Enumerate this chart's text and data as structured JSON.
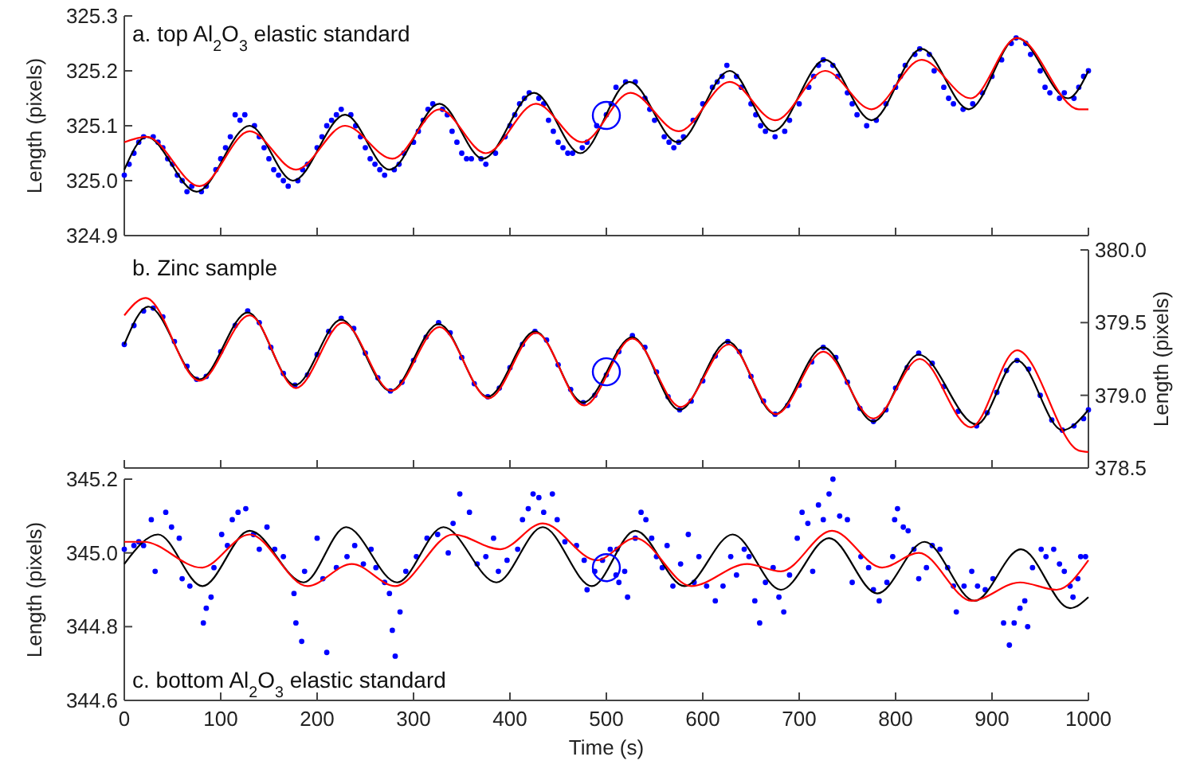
{
  "chart_data": [
    {
      "type": "scatter",
      "title": "a. top Al$_{2}$O$_{3}$ elastic standard",
      "ylabel": "Length (pixels)",
      "xlim": [
        0,
        1000
      ],
      "xticks": [
        0,
        100,
        200,
        300,
        400,
        500,
        600,
        700,
        800,
        900,
        1000
      ],
      "ylim": [
        324.9,
        325.3
      ],
      "yticks": [
        324.9,
        {
          "value": 325,
          "label": "325.0"
        },
        325.1,
        325.2,
        325.3
      ],
      "tick_labels": "y",
      "grid": false,
      "series": [
        {
          "color": "#0000ff",
          "marker": "circle",
          "x": [
            0,
            5,
            10,
            15,
            20,
            30,
            35,
            40,
            45,
            50,
            55,
            60,
            65,
            70,
            80,
            85,
            95,
            100,
            105,
            110,
            115,
            120,
            125,
            135,
            140,
            145,
            150,
            155,
            160,
            165,
            170,
            180,
            185,
            190,
            200,
            205,
            210,
            215,
            220,
            225,
            235,
            240,
            245,
            250,
            255,
            260,
            265,
            270,
            280,
            285,
            290,
            300,
            305,
            310,
            315,
            320,
            330,
            335,
            340,
            345,
            350,
            355,
            360,
            370,
            375,
            385,
            395,
            400,
            405,
            410,
            415,
            420,
            430,
            435,
            440,
            445,
            450,
            455,
            460,
            465,
            475,
            480,
            490,
            500,
            505,
            510,
            520,
            530,
            540,
            545,
            550,
            560,
            565,
            570,
            575,
            580,
            590,
            600,
            610,
            615,
            620,
            625,
            635,
            640,
            650,
            655,
            660,
            665,
            675,
            685,
            690,
            700,
            710,
            715,
            720,
            725,
            735,
            740,
            750,
            755,
            760,
            770,
            780,
            790,
            800,
            805,
            810,
            820,
            825,
            835,
            840,
            850,
            855,
            860,
            870,
            880,
            890,
            900,
            910,
            920,
            925,
            935,
            940,
            950,
            955,
            960,
            970,
            975,
            985,
            990,
            995,
            1000
          ],
          "values": [
            325.01,
            325.03,
            325.05,
            325.07,
            325.08,
            325.08,
            325.07,
            325.06,
            325.04,
            325.03,
            325.01,
            325.0,
            324.98,
            324.99,
            324.98,
            324.99,
            325.02,
            325.04,
            325.06,
            325.08,
            325.12,
            325.11,
            325.12,
            325.1,
            325.08,
            325.06,
            325.04,
            325.02,
            325.01,
            325.0,
            324.99,
            325.0,
            325.02,
            325.03,
            325.06,
            325.08,
            325.1,
            325.11,
            325.12,
            325.13,
            325.12,
            325.1,
            325.08,
            325.06,
            325.04,
            325.03,
            325.02,
            325.01,
            325.02,
            325.03,
            325.05,
            325.07,
            325.09,
            325.11,
            325.13,
            325.14,
            325.13,
            325.12,
            325.09,
            325.07,
            325.05,
            325.04,
            325.04,
            325.04,
            325.03,
            325.05,
            325.08,
            325.1,
            325.12,
            325.14,
            325.15,
            325.16,
            325.15,
            325.14,
            325.11,
            325.09,
            325.07,
            325.06,
            325.05,
            325.05,
            325.06,
            325.07,
            325.1,
            325.12,
            325.14,
            325.17,
            325.18,
            325.18,
            325.15,
            325.13,
            325.11,
            325.08,
            325.07,
            325.06,
            325.07,
            325.08,
            325.11,
            325.14,
            325.17,
            325.18,
            325.19,
            325.21,
            325.19,
            325.17,
            325.14,
            325.12,
            325.1,
            325.09,
            325.08,
            325.09,
            325.11,
            325.14,
            325.17,
            325.19,
            325.21,
            325.22,
            325.21,
            325.19,
            325.16,
            325.14,
            325.12,
            325.1,
            325.11,
            325.14,
            325.17,
            325.19,
            325.21,
            325.23,
            325.24,
            325.23,
            325.2,
            325.17,
            325.15,
            325.14,
            325.13,
            325.14,
            325.16,
            325.19,
            325.22,
            325.25,
            325.26,
            325.25,
            325.23,
            325.2,
            325.17,
            325.16,
            325.15,
            325.16,
            325.15,
            325.17,
            325.19,
            325.2
          ]
        },
        {
          "type": "line",
          "color": "#000000",
          "x": [
            0,
            23,
            75,
            130,
            175,
            229,
            275,
            327,
            372,
            425,
            473,
            524,
            574,
            628,
            673,
            727,
            775,
            827,
            876,
            926,
            979,
            1000
          ],
          "values": [
            325.02,
            325.08,
            324.98,
            325.1,
            325.0,
            325.12,
            325.02,
            325.14,
            325.04,
            325.16,
            325.05,
            325.18,
            325.07,
            325.2,
            325.09,
            325.22,
            325.11,
            325.24,
            325.13,
            325.26,
            325.15,
            325.2
          ]
        },
        {
          "type": "line",
          "color": "#ff0000",
          "x": [
            0,
            23,
            78,
            130,
            178,
            229,
            278,
            327,
            375,
            427,
            475,
            525,
            575,
            628,
            675,
            727,
            775,
            827,
            878,
            926,
            990,
            1000
          ],
          "values": [
            325.07,
            325.08,
            324.99,
            325.09,
            325.02,
            325.1,
            325.04,
            325.13,
            325.05,
            325.14,
            325.07,
            325.16,
            325.09,
            325.18,
            325.11,
            325.2,
            325.13,
            325.22,
            325.15,
            325.26,
            325.13,
            325.13
          ]
        }
      ]
    },
    {
      "type": "scatter",
      "title": "b. Zinc sample",
      "ylabel": "Length (pixels)",
      "xlim": [
        0,
        1000
      ],
      "xticks": [
        0,
        100,
        200,
        300,
        400,
        500,
        600,
        700,
        800,
        900,
        1000
      ],
      "ylim": [
        378.5,
        380
      ],
      "yticks": [
        378.5,
        {
          "value": 379,
          "label": "379.0"
        },
        379.5,
        {
          "value": 380,
          "label": "380.0"
        }
      ],
      "tick_labels": "y",
      "grid": false,
      "series": [
        {
          "color": "#0000ff",
          "marker": "circle",
          "x": [
            0,
            10,
            20,
            30,
            40,
            52,
            65,
            75,
            85,
            100,
            115,
            128,
            140,
            152,
            165,
            177,
            190,
            200,
            212,
            225,
            238,
            250,
            263,
            276,
            288,
            300,
            313,
            326,
            338,
            350,
            363,
            377,
            389,
            400,
            413,
            426,
            438,
            450,
            463,
            476,
            488,
            500,
            513,
            527,
            540,
            552,
            564,
            576,
            588,
            600,
            613,
            626,
            638,
            650,
            663,
            675,
            688,
            700,
            713,
            725,
            738,
            750,
            763,
            777,
            790,
            800,
            812,
            824,
            838,
            850,
            865,
            884,
            895,
            905,
            915,
            926,
            938,
            950,
            962,
            973,
            985,
            995,
            1000
          ],
          "values": [
            379.35,
            379.48,
            379.58,
            379.6,
            379.54,
            379.37,
            379.2,
            379.11,
            379.13,
            379.3,
            379.48,
            379.58,
            379.5,
            379.33,
            379.15,
            379.07,
            379.14,
            379.28,
            379.44,
            379.53,
            379.46,
            379.29,
            379.12,
            379.03,
            379.09,
            379.24,
            379.4,
            379.5,
            379.43,
            379.26,
            379.08,
            378.99,
            379.05,
            379.19,
            379.35,
            379.44,
            379.38,
            379.21,
            379.04,
            378.95,
            379.0,
            379.14,
            379.3,
            379.41,
            379.33,
            379.16,
            378.99,
            378.9,
            378.96,
            379.1,
            379.27,
            379.37,
            379.3,
            379.13,
            378.96,
            378.87,
            378.93,
            379.07,
            379.23,
            379.33,
            379.26,
            379.09,
            378.91,
            378.82,
            378.9,
            379.05,
            379.19,
            379.29,
            379.22,
            379.06,
            378.89,
            378.79,
            378.88,
            379.02,
            379.17,
            379.24,
            379.18,
            379.0,
            378.83,
            378.76,
            378.79,
            378.84,
            378.9
          ]
        },
        {
          "type": "line",
          "color": "#000000",
          "x": [
            0,
            25,
            78,
            128,
            177,
            225,
            276,
            326,
            377,
            426,
            476,
            527,
            576,
            626,
            675,
            725,
            777,
            824,
            884,
            926,
            973,
            1000
          ],
          "values": [
            379.35,
            379.61,
            379.11,
            379.57,
            379.07,
            379.52,
            379.03,
            379.49,
            378.99,
            379.44,
            378.95,
            379.4,
            378.9,
            379.37,
            378.87,
            379.33,
            378.82,
            379.28,
            378.8,
            379.24,
            378.76,
            378.9
          ]
        },
        {
          "type": "line",
          "color": "#ff0000",
          "x": [
            0,
            22,
            78,
            130,
            178,
            227,
            277,
            327,
            378,
            427,
            477,
            527,
            577,
            627,
            676,
            725,
            777,
            825,
            878,
            926,
            990,
            1000
          ],
          "values": [
            379.55,
            379.67,
            379.1,
            379.55,
            379.05,
            379.5,
            379.03,
            379.47,
            378.98,
            379.43,
            378.93,
            379.39,
            378.92,
            379.35,
            378.87,
            379.3,
            378.84,
            379.25,
            378.78,
            379.31,
            378.62,
            378.61
          ]
        }
      ]
    },
    {
      "type": "scatter",
      "title": "c. bottom Al$_{2}$O$_{3}$ elastic standard",
      "xlabel": "Time (s)",
      "ylabel": "Length (pixels)",
      "xlim": [
        0,
        1000
      ],
      "xticks": [
        0,
        100,
        200,
        300,
        400,
        500,
        600,
        700,
        800,
        900,
        1000
      ],
      "ylim": [
        344.6,
        345.2
      ],
      "yticks": [
        344.6,
        344.8,
        {
          "value": 345,
          "label": "345.0"
        },
        345.2
      ],
      "grid": false,
      "series": [
        {
          "color": "#0000ff",
          "marker": "circle",
          "x": [
            0,
            10,
            15,
            20,
            28,
            32,
            43,
            49,
            57,
            60,
            68,
            82,
            85,
            90,
            93,
            101,
            107,
            112,
            118,
            126,
            134,
            140,
            148,
            156,
            165,
            176,
            178,
            184,
            187,
            200,
            206,
            210,
            220,
            231,
            239,
            248,
            256,
            261,
            270,
            275,
            278,
            281,
            286,
            292,
            303,
            314,
            325,
            336,
            341,
            348,
            358,
            366,
            375,
            383,
            388,
            397,
            408,
            413,
            419,
            424,
            430,
            435,
            444,
            449,
            457,
            469,
            477,
            480,
            488,
            496,
            504,
            510,
            513,
            511,
            519,
            522,
            530,
            536,
            541,
            547,
            552,
            558,
            563,
            569,
            577,
            585,
            591,
            596,
            604,
            613,
            621,
            629,
            635,
            643,
            648,
            654,
            659,
            665,
            673,
            679,
            684,
            690,
            698,
            703,
            709,
            714,
            720,
            725,
            731,
            735,
            742,
            750,
            755,
            764,
            772,
            777,
            783,
            791,
            797,
            799,
            802,
            808,
            813,
            819,
            824,
            832,
            838,
            846,
            854,
            860,
            863,
            871,
            879,
            885,
            893,
            901,
            912,
            918,
            923,
            929,
            934,
            937,
            942,
            951,
            956,
            964,
            970,
            975,
            981,
            984,
            989,
            992,
            997
          ],
          "values": [
            345.01,
            345.02,
            345.03,
            345.02,
            345.09,
            344.95,
            345.11,
            345.07,
            345.04,
            344.93,
            344.91,
            344.81,
            344.85,
            344.88,
            344.96,
            345.05,
            345.02,
            345.09,
            345.11,
            345.12,
            345.05,
            345.01,
            345.07,
            345.01,
            344.99,
            344.89,
            344.81,
            344.76,
            344.95,
            345.04,
            344.93,
            344.73,
            344.96,
            344.99,
            345.02,
            344.97,
            345.01,
            344.96,
            344.92,
            344.89,
            344.79,
            344.72,
            344.84,
            344.95,
            344.99,
            345.04,
            345.05,
            345.0,
            345.08,
            345.16,
            345.11,
            344.97,
            344.99,
            345.04,
            344.95,
            344.98,
            345.01,
            345.09,
            345.12,
            345.16,
            345.15,
            345.11,
            345.16,
            345.09,
            345.03,
            345.02,
            344.98,
            344.9,
            344.95,
            344.98,
            345.01,
            344.94,
            344.92,
            345.01,
            344.95,
            344.88,
            345.04,
            345.11,
            345.09,
            345.04,
            344.99,
            344.96,
            345.02,
            344.91,
            344.97,
            345.05,
            344.92,
            344.99,
            344.91,
            344.87,
            344.91,
            344.99,
            344.94,
            345.01,
            344.99,
            344.87,
            344.81,
            344.92,
            344.96,
            344.88,
            344.84,
            344.94,
            345.04,
            345.11,
            345.08,
            344.95,
            345.13,
            345.09,
            345.16,
            345.2,
            345.1,
            345.09,
            344.92,
            344.99,
            344.96,
            344.9,
            344.87,
            344.92,
            344.99,
            345.09,
            345.12,
            345.07,
            345.06,
            345.01,
            344.93,
            344.96,
            345.02,
            345.01,
            344.96,
            344.91,
            344.84,
            344.91,
            344.95,
            344.91,
            344.9,
            344.93,
            344.81,
            344.75,
            344.81,
            344.85,
            344.87,
            344.8,
            344.96,
            345.01,
            344.99,
            345.01,
            344.97,
            344.95,
            344.91,
            344.88,
            344.93,
            344.99,
            344.99
          ]
        },
        {
          "type": "line",
          "color": "#000000",
          "x": [
            0,
            35,
            81,
            130,
            186,
            230,
            283,
            331,
            386,
            434,
            485,
            530,
            581,
            631,
            681,
            731,
            781,
            830,
            882,
            930,
            981,
            1000
          ],
          "values": [
            344.97,
            345.05,
            344.91,
            345.06,
            344.92,
            345.07,
            344.92,
            345.07,
            344.92,
            345.07,
            344.91,
            345.06,
            344.91,
            345.05,
            344.9,
            345.04,
            344.89,
            345.03,
            344.87,
            345.01,
            344.85,
            344.88
          ]
        },
        {
          "type": "line",
          "color": "#ff0000",
          "x": [
            0,
            20,
            80,
            130,
            190,
            236,
            281,
            341,
            390,
            434,
            490,
            530,
            588,
            646,
            681,
            734,
            786,
            824,
            879,
            929,
            967,
            1000
          ],
          "values": [
            345.03,
            345.03,
            344.96,
            345.05,
            344.91,
            344.97,
            344.91,
            345.05,
            345.01,
            345.08,
            344.98,
            345.04,
            344.91,
            344.97,
            344.95,
            345.06,
            344.96,
            345.0,
            344.87,
            344.92,
            344.9,
            344.98
          ]
        }
      ]
    }
  ]
}
